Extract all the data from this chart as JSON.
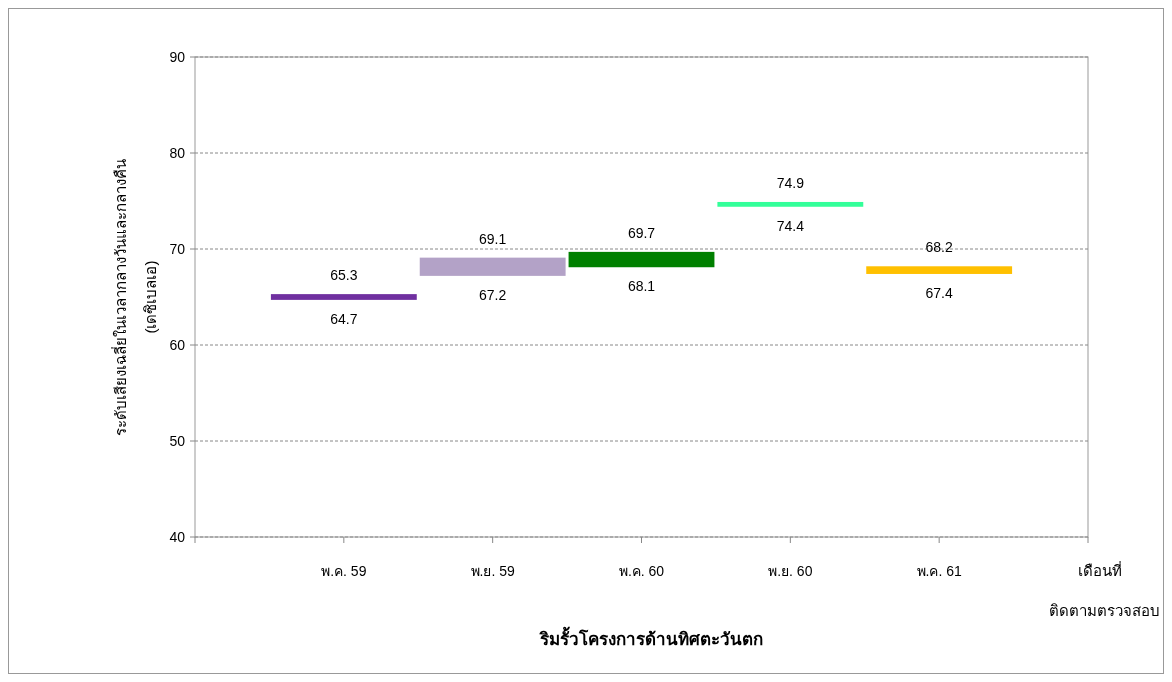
{
  "chart_data": {
    "type": "bar",
    "title": "ริมรั้วโครงการด้านทิศตะวันตก",
    "xlabel": "เดือนที่ ติดตามตรวจสอบ",
    "ylabel": "ระดับเสียงเฉลี่ยในเวลากลางวันและกลางคืน (เดซิเบลเอ)",
    "categories": [
      "พ.ค. 59",
      "พ.ย. 59",
      "พ.ค. 60",
      "พ.ย. 60",
      "พ.ค. 61"
    ],
    "base": [
      64.7,
      67.2,
      68.1,
      74.4,
      67.4
    ],
    "values": [
      0.6,
      1.9,
      1.6,
      0.5,
      0.8
    ],
    "colors": [
      "#7030a0",
      "#b3a2c7",
      "#008000",
      "#33ff99",
      "#ffc000"
    ],
    "ylim": [
      40,
      90
    ],
    "yticks": [
      40,
      50,
      60,
      70,
      80,
      90
    ],
    "grid": "y",
    "annotations": [
      {
        "text": "65.3",
        "x": "พ.ค. 59",
        "y": 65.3
      },
      {
        "text": "64.7",
        "x": "พ.ค. 59",
        "y": 64.7
      },
      {
        "text": "69.1",
        "x": "พ.ย. 59",
        "y": 69.1
      },
      {
        "text": "67.2",
        "x": "พ.ย. 59",
        "y": 67.2
      },
      {
        "text": "69.7",
        "x": "พ.ค. 60",
        "y": 69.7
      },
      {
        "text": "68.1",
        "x": "พ.ค. 60",
        "y": 68.1
      },
      {
        "text": "74.9",
        "x": "พ.ย. 60",
        "y": 74.9
      },
      {
        "text": "74.4",
        "x": "พ.ย. 60",
        "y": 74.4
      },
      {
        "text": "68.2",
        "x": "พ.ค. 61",
        "y": 68.2
      },
      {
        "text": "67.4",
        "x": "พ.ค. 61",
        "y": 67.4
      }
    ]
  }
}
